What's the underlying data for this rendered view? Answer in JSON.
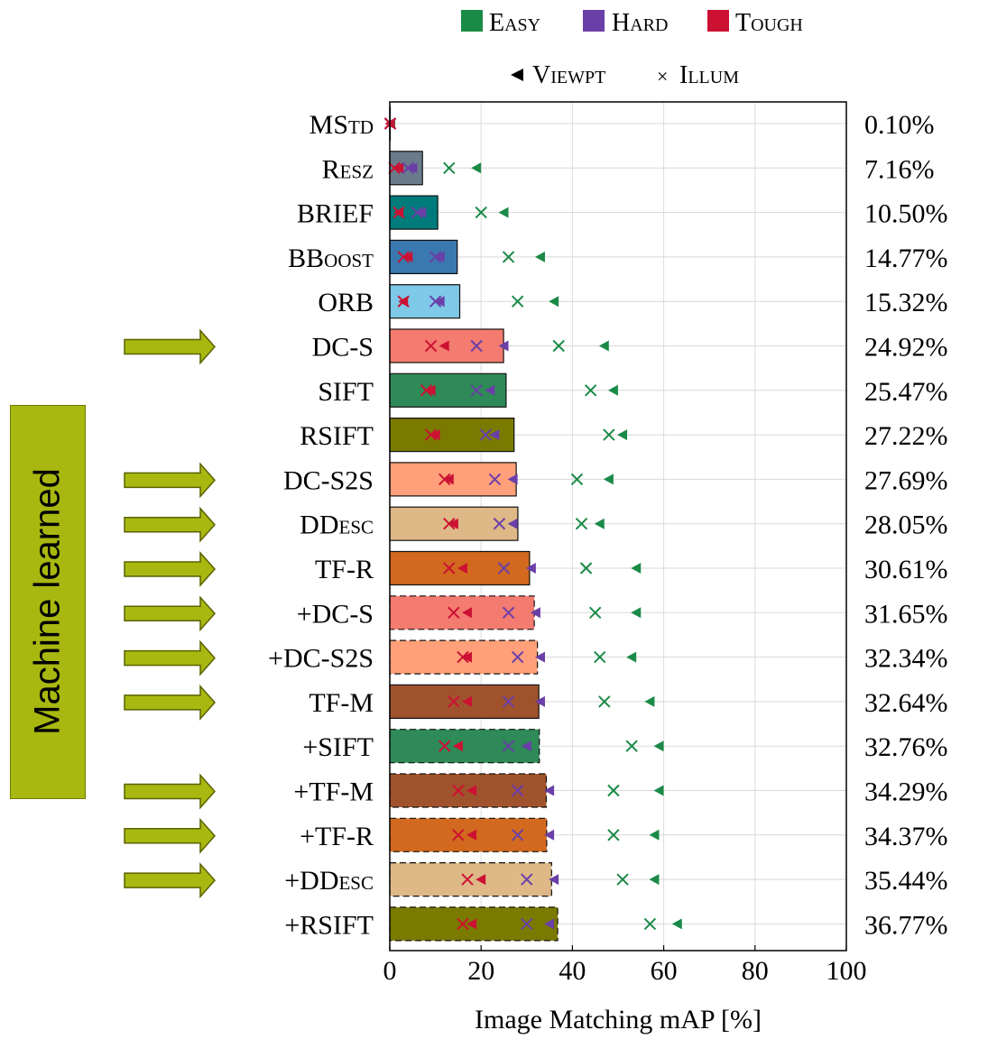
{
  "legend": {
    "difficulty": [
      {
        "name": "Easy",
        "color": "#1a8a47"
      },
      {
        "name": "Hard",
        "color": "#6a3fa8"
      },
      {
        "name": "Tough",
        "color": "#cc1133"
      }
    ],
    "viewpt": "Viewpt",
    "cross": "×",
    "illum": "Illum"
  },
  "annotation": {
    "label": "Machine learned",
    "color": "#a8b810",
    "marked_rows": [
      "DC-S",
      "DC-S2S",
      "DDesc",
      "TF-R",
      "+DC-S",
      "+DC-S2S",
      "TF-M",
      "+TF-M",
      "+TF-R",
      "+DDesc"
    ]
  },
  "chart_data": {
    "type": "bar",
    "orientation": "horizontal",
    "xlabel": "Image Matching mAP [%]",
    "xlim": [
      0,
      100
    ],
    "xticks": [
      "0",
      "20",
      "40",
      "60",
      "80",
      "100"
    ],
    "grid": true,
    "categories": [
      "MStd",
      "Resz",
      "BRIEF",
      "BBoost",
      "ORB",
      "DC-S",
      "SIFT",
      "RSIFT",
      "DC-S2S",
      "DDesc",
      "TF-R",
      "+DC-S",
      "+DC-S2S",
      "TF-M",
      "+SIFT",
      "+TF-M",
      "+TF-R",
      "+DDesc",
      "+RSIFT"
    ],
    "value_labels": [
      "0.10%",
      "7.16%",
      "10.50%",
      "14.77%",
      "15.32%",
      "24.92%",
      "25.47%",
      "27.22%",
      "27.69%",
      "28.05%",
      "30.61%",
      "31.65%",
      "32.34%",
      "32.64%",
      "32.76%",
      "34.29%",
      "34.37%",
      "35.44%",
      "36.77%"
    ],
    "values": [
      0.1,
      7.16,
      10.5,
      14.77,
      15.32,
      24.92,
      25.47,
      27.22,
      27.69,
      28.05,
      30.61,
      31.65,
      32.34,
      32.64,
      32.76,
      34.29,
      34.37,
      35.44,
      36.77
    ],
    "bar_colors": [
      "#555555",
      "#6b7b8c",
      "#007b7b",
      "#3a78b0",
      "#7ec8e8",
      "#f47b70",
      "#2e8a57",
      "#7a7a00",
      "#ffa07a",
      "#deb887",
      "#d2691e",
      "#f47b70",
      "#ffa07a",
      "#a0522d",
      "#2e8a57",
      "#a0522d",
      "#d2691e",
      "#deb887",
      "#7a7a00"
    ],
    "dashed_border": [
      false,
      false,
      false,
      false,
      false,
      false,
      false,
      false,
      false,
      false,
      false,
      true,
      true,
      false,
      true,
      true,
      true,
      true,
      true
    ],
    "series": [
      {
        "name": "Easy viewpt",
        "marker": "triangle",
        "values": [
          0.2,
          19,
          25,
          33,
          36,
          47,
          49,
          51,
          48,
          46,
          54,
          54,
          53,
          57,
          59,
          59,
          58,
          58,
          63
        ]
      },
      {
        "name": "Hard viewpt",
        "marker": "triangle",
        "values": [
          0.1,
          5,
          7,
          11,
          11,
          25,
          22,
          23,
          27,
          27,
          31,
          32,
          33,
          33,
          30,
          35,
          35,
          36,
          35
        ]
      },
      {
        "name": "Tough viewpt",
        "marker": "triangle",
        "values": [
          0.1,
          2,
          2,
          4,
          3,
          12,
          9,
          10,
          13,
          14,
          16,
          17,
          17,
          17,
          15,
          18,
          18,
          20,
          18
        ]
      },
      {
        "name": "Easy illum",
        "marker": "cross",
        "values": [
          0.1,
          13,
          20,
          26,
          28,
          37,
          44,
          48,
          41,
          42,
          43,
          45,
          46,
          47,
          53,
          49,
          49,
          51,
          57
        ]
      },
      {
        "name": "Hard illum",
        "marker": "cross",
        "values": [
          0.1,
          4,
          6,
          10,
          10,
          19,
          19,
          21,
          23,
          24,
          25,
          26,
          28,
          26,
          26,
          28,
          28,
          30,
          30
        ]
      },
      {
        "name": "Tough illum",
        "marker": "cross",
        "values": [
          0.1,
          1,
          2,
          3,
          3,
          9,
          8,
          9,
          12,
          13,
          13,
          14,
          16,
          14,
          12,
          15,
          15,
          17,
          16
        ]
      }
    ]
  }
}
